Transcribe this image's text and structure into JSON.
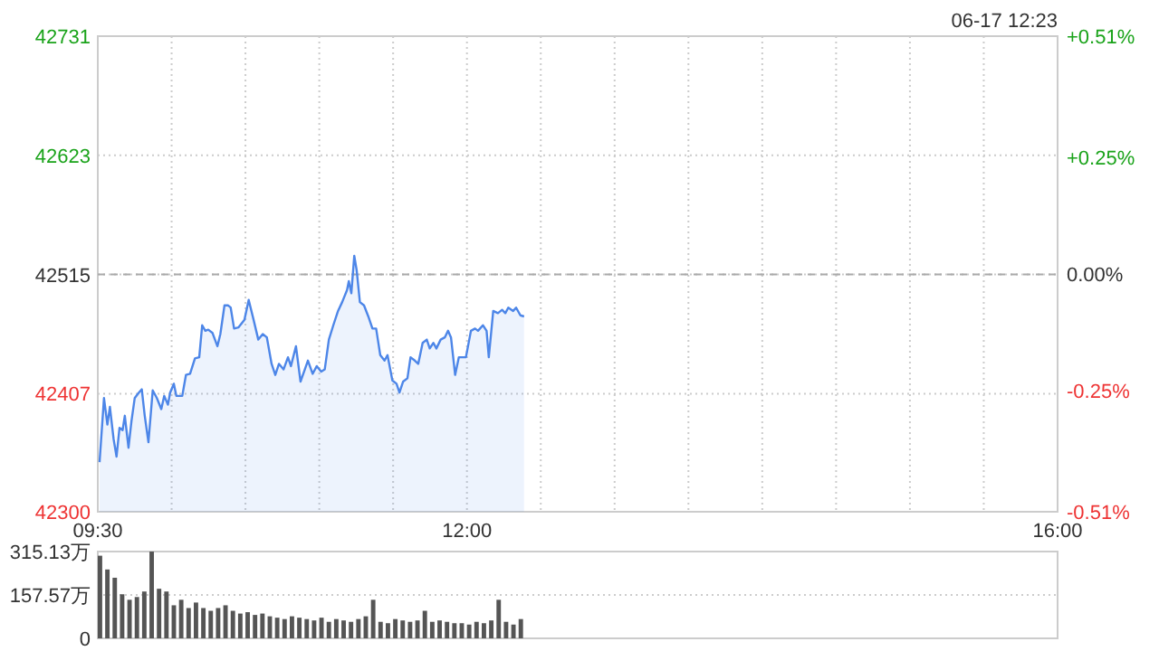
{
  "chart_data": [
    {
      "type": "area",
      "subtitle": "06-17 12:23",
      "color": "#4d86e8",
      "grid": true,
      "x": [
        9.512,
        9.542,
        9.565,
        9.582,
        9.607,
        9.627,
        9.647,
        9.668,
        9.683,
        9.708,
        9.728,
        9.75,
        9.778,
        9.798,
        9.818,
        9.843,
        9.872,
        9.9,
        9.93,
        9.95,
        9.975,
        9.99,
        10.015,
        10.032,
        10.072,
        10.097,
        10.125,
        10.158,
        10.187,
        10.207,
        10.228,
        10.248,
        10.277,
        10.31,
        10.33,
        10.358,
        10.383,
        10.4,
        10.423,
        10.452,
        10.493,
        10.522,
        10.555,
        10.587,
        10.617,
        10.645,
        10.677,
        10.702,
        10.727,
        10.758,
        10.788,
        10.808,
        10.842,
        10.873,
        10.902,
        10.923,
        10.955,
        10.983,
        11.013,
        11.037,
        11.065,
        11.095,
        11.127,
        11.155,
        11.188,
        11.2,
        11.217,
        11.237,
        11.253,
        11.275,
        11.303,
        11.332,
        11.36,
        11.385,
        11.413,
        11.442,
        11.462,
        11.495,
        11.523,
        11.543,
        11.568,
        11.597,
        11.618,
        11.647,
        11.67,
        11.7,
        11.728,
        11.748,
        11.773,
        11.793,
        11.822,
        11.85,
        11.872,
        11.892,
        11.92,
        11.945,
        11.973,
        11.993,
        12.027,
        12.055,
        12.075,
        12.108,
        12.133,
        12.148,
        12.178,
        12.21,
        12.238,
        12.26,
        12.28,
        12.313,
        12.333,
        12.362,
        12.387
      ],
      "values": [
        42345,
        42403,
        42379,
        42395,
        42366,
        42350,
        42376,
        42374,
        42387,
        42358,
        42382,
        42403,
        42408,
        42411,
        42387,
        42363,
        42410,
        42403,
        42393,
        42405,
        42397,
        42408,
        42416,
        42405,
        42405,
        42424,
        42425,
        42439,
        42440,
        42469,
        42464,
        42465,
        42462,
        42450,
        42461,
        42487,
        42487,
        42485,
        42466,
        42467,
        42474,
        42492,
        42474,
        42456,
        42461,
        42458,
        42434,
        42424,
        42434,
        42429,
        42440,
        42432,
        42450,
        42418,
        42429,
        42437,
        42425,
        42432,
        42427,
        42429,
        42456,
        42469,
        42482,
        42490,
        42501,
        42509,
        42498,
        42532,
        42519,
        42490,
        42487,
        42477,
        42466,
        42466,
        42442,
        42437,
        42442,
        42419,
        42416,
        42408,
        42418,
        42421,
        42440,
        42437,
        42434,
        42453,
        42456,
        42448,
        42453,
        42448,
        42456,
        42458,
        42464,
        42458,
        42424,
        42440,
        42440,
        42440,
        42464,
        42466,
        42464,
        42469,
        42464,
        42440,
        42482,
        42480,
        42483,
        42480,
        42485,
        42482,
        42485,
        42478,
        42477
      ],
      "xlim": [
        9.5,
        16
      ],
      "xticks": [
        {
          "value": 9.5,
          "label": "09:30"
        },
        {
          "value": 10,
          "label": null
        },
        {
          "value": 10.5,
          "label": null
        },
        {
          "value": 11,
          "label": null
        },
        {
          "value": 11.5,
          "label": null
        },
        {
          "value": 12,
          "label": "12:00"
        },
        {
          "value": 12.5,
          "label": null
        },
        {
          "value": 13,
          "label": null
        },
        {
          "value": 13.5,
          "label": null
        },
        {
          "value": 14,
          "label": null
        },
        {
          "value": 14.5,
          "label": null
        },
        {
          "value": 15,
          "label": null
        },
        {
          "value": 15.5,
          "label": null
        },
        {
          "value": 16,
          "label": "16:00"
        }
      ],
      "ylim": [
        42300,
        42731
      ],
      "yticks": [
        42300,
        42407,
        42515,
        42623,
        42731
      ],
      "y2lim": [
        -0.51,
        0.51
      ],
      "y2ticks": [
        {
          "value": -0.51,
          "label": "-0.51%"
        },
        {
          "value": -0.25,
          "label": "-0.25%"
        },
        {
          "value": 0,
          "label": "0.00%"
        },
        {
          "value": 0.25,
          "label": "+0.25%"
        },
        {
          "value": 0.51,
          "label": "+0.51%"
        }
      ],
      "ref_lines": [
        {
          "axis": "y",
          "value": 42515,
          "line_style": "dashed"
        }
      ]
    },
    {
      "type": "bar",
      "color": "#555555",
      "grid": "y",
      "tick_labels": "y",
      "x": [
        9.5,
        9.55,
        9.6,
        9.65,
        9.7,
        9.75,
        9.8,
        9.85,
        9.9,
        9.95,
        10,
        10.05,
        10.1,
        10.15,
        10.2,
        10.25,
        10.3,
        10.35,
        10.4,
        10.45,
        10.5,
        10.55,
        10.6,
        10.65,
        10.7,
        10.75,
        10.8,
        10.85,
        10.9,
        10.95,
        11,
        11.05,
        11.1,
        11.15,
        11.2,
        11.25,
        11.3,
        11.35,
        11.4,
        11.45,
        11.5,
        11.55,
        11.6,
        11.65,
        11.7,
        11.75,
        11.8,
        11.85,
        11.9,
        11.95,
        12,
        12.05,
        12.1,
        12.15,
        12.2,
        12.25,
        12.3,
        12.35
      ],
      "values": [
        300,
        250,
        220,
        160,
        140,
        150,
        170,
        315,
        180,
        170,
        120,
        140,
        110,
        130,
        110,
        100,
        110,
        120,
        100,
        90,
        95,
        85,
        90,
        80,
        75,
        70,
        80,
        75,
        70,
        65,
        75,
        60,
        70,
        65,
        60,
        70,
        80,
        140,
        60,
        55,
        70,
        65,
        60,
        65,
        100,
        60,
        65,
        60,
        55,
        55,
        50,
        60,
        55,
        65,
        140,
        60,
        50,
        70
      ],
      "xlim": [
        9.5,
        16
      ],
      "ylim": [
        0,
        315.13
      ],
      "yticks": [
        0,
        {
          "value": 157.57,
          "label": "157.57万"
        },
        {
          "value": 315.13,
          "label": "315.13万"
        }
      ]
    }
  ]
}
